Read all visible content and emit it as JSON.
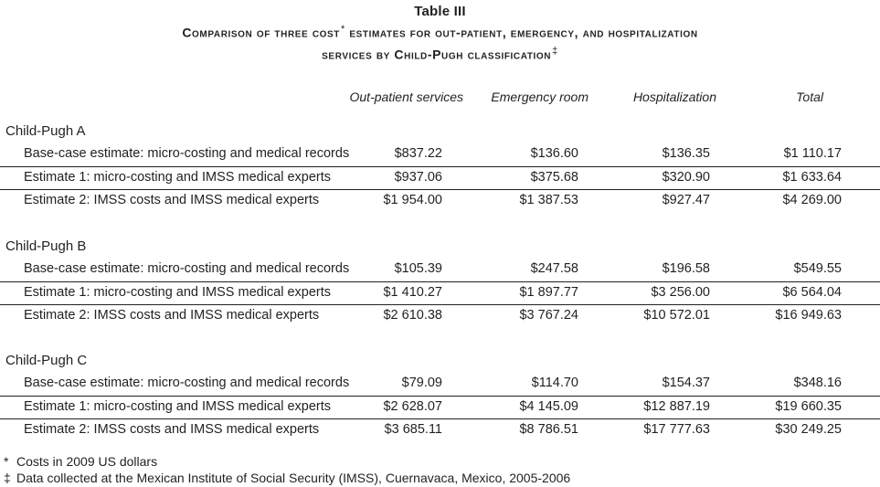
{
  "table_label": "Table III",
  "title_line1": "Comparison of three cost",
  "title_line1_mark": "*",
  "title_line1_rest": " estimates for out-patient, emergency, and hospitalization",
  "title_line2": "services by Child-Pugh classification",
  "title_line2_mark": "‡",
  "columns": [
    "Out-patient services",
    "Emergency room",
    "Hospitalization",
    "Total"
  ],
  "groups": [
    {
      "name": "Child-Pugh A",
      "rows": [
        {
          "label": "Base-case estimate: micro-costing and medical records",
          "values": [
            "$837.22",
            "$136.60",
            "$136.35",
            "$1 110.17"
          ]
        },
        {
          "label": "Estimate 1: micro-costing and IMSS medical experts",
          "values": [
            "$937.06",
            "$375.68",
            "$320.90",
            "$1 633.64"
          ]
        },
        {
          "label": "Estimate 2: IMSS costs and IMSS medical experts",
          "values": [
            "$1 954.00",
            "$1 387.53",
            "$927.47",
            "$4 269.00"
          ]
        }
      ]
    },
    {
      "name": "Child-Pugh B",
      "rows": [
        {
          "label": "Base-case estimate: micro-costing and medical records",
          "values": [
            "$105.39",
            "$247.58",
            "$196.58",
            "$549.55"
          ]
        },
        {
          "label": "Estimate 1: micro-costing and IMSS medical experts",
          "values": [
            "$1 410.27",
            "$1 897.77",
            "$3 256.00",
            "$6 564.04"
          ]
        },
        {
          "label": "Estimate 2: IMSS costs and IMSS medical experts",
          "values": [
            "$2 610.38",
            "$3 767.24",
            "$10 572.01",
            "$16 949.63"
          ]
        }
      ]
    },
    {
      "name": "Child-Pugh C",
      "rows": [
        {
          "label": "Base-case estimate: micro-costing and medical records",
          "values": [
            "$79.09",
            "$114.70",
            "$154.37",
            "$348.16"
          ]
        },
        {
          "label": "Estimate 1: micro-costing and IMSS medical experts",
          "values": [
            "$2 628.07",
            "$4 145.09",
            "$12 887.19",
            "$19 660.35"
          ]
        },
        {
          "label": "Estimate 2: IMSS costs and IMSS medical experts",
          "values": [
            "$3 685.11",
            "$8 786.51",
            "$17 777.63",
            "$30 249.25"
          ]
        }
      ]
    }
  ],
  "footnotes": [
    {
      "mark": "*",
      "text": "Costs in 2009 US dollars"
    },
    {
      "mark": "‡",
      "text": "Data collected at the Mexican Institute of Social Security (IMSS), Cuernavaca, Mexico, 2005-2006"
    }
  ]
}
